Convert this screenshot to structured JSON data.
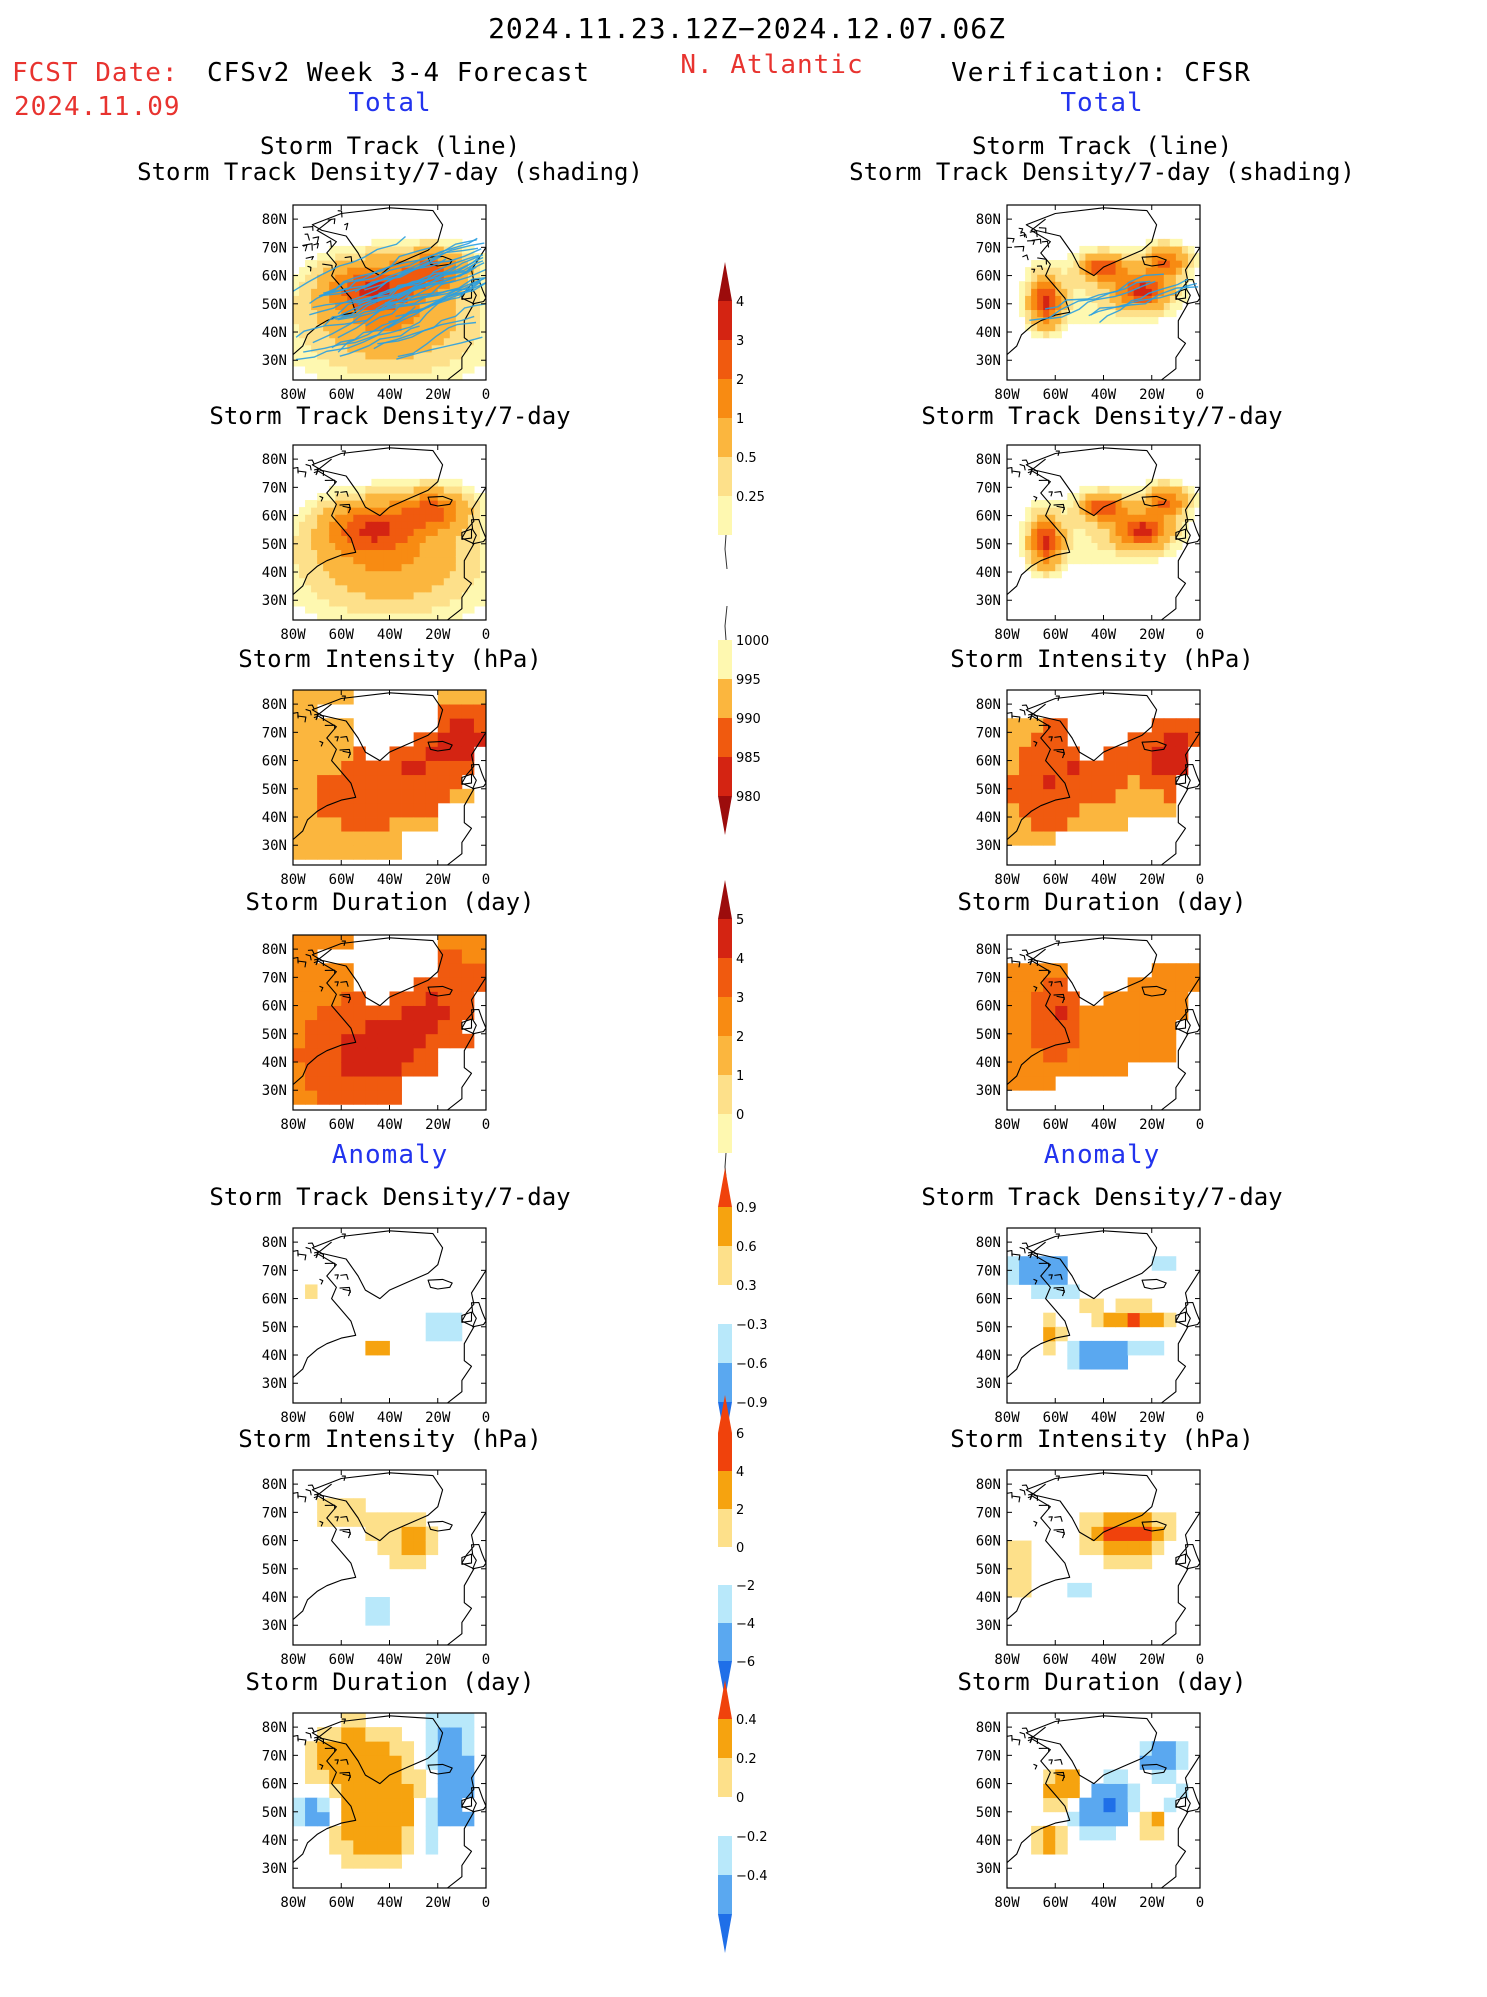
{
  "header": {
    "period": "2024.11.23.12Z−2024.12.07.06Z",
    "fcst_label": "FCST Date:",
    "fcst_date": "2024.11.09",
    "model": "CFSv2 Week 3-4 Forecast",
    "region": "N. Atlantic",
    "verification": "Verification: CFSR"
  },
  "sections": {
    "total_left": "Total",
    "total_right": "Total",
    "anomaly_left": "Anomaly",
    "anomaly_right": "Anomaly"
  },
  "panel_titles": {
    "track_line": "Storm Track (line)",
    "track_shading": "Storm Track Density/7-day (shading)",
    "density": "Storm Track Density/7-day",
    "intensity": "Storm Intensity (hPa)",
    "duration": "Storm Duration (day)"
  },
  "map_axes": {
    "lat_ticks": [
      "80N",
      "70N",
      "60N",
      "50N",
      "40N",
      "30N"
    ],
    "lon_ticks": [
      "80W",
      "60W",
      "40W",
      "20W",
      "0"
    ]
  },
  "colors": {
    "track_line": "#2a9fe0",
    "positive_scale": [
      "#fef8b0",
      "#fde08a",
      "#fbb63e",
      "#f88b12",
      "#f05a0f",
      "#d42412",
      "#9c0c0c"
    ],
    "anomaly_scale": [
      "#1f6fe8",
      "#5aa8f0",
      "#b8e8fa",
      "#ffffff",
      "#fde08a",
      "#f6a30f",
      "#f0420c"
    ]
  },
  "chart_data": [
    {
      "id": "colorbar-density",
      "type": "colorbar",
      "levels": [
        "4",
        "3",
        "2",
        "1",
        "0.5",
        "0.25"
      ]
    },
    {
      "id": "colorbar-intensity",
      "type": "colorbar",
      "levels": [
        "1000",
        "995",
        "990",
        "985",
        "980"
      ]
    },
    {
      "id": "colorbar-duration",
      "type": "colorbar",
      "levels": [
        "5",
        "4",
        "3",
        "2",
        "1",
        "0"
      ]
    },
    {
      "id": "colorbar-density-anom",
      "type": "colorbar",
      "levels": [
        "0.9",
        "0.6",
        "0.3",
        "−0.3",
        "−0.6",
        "−0.9"
      ]
    },
    {
      "id": "colorbar-intensity-anom",
      "type": "colorbar",
      "levels": [
        "6",
        "4",
        "2",
        "0",
        "−2",
        "−4",
        "−6"
      ]
    },
    {
      "id": "colorbar-duration-anom",
      "type": "colorbar",
      "levels": [
        "0.4",
        "0.2",
        "0",
        "−0.2",
        "−0.4"
      ]
    }
  ]
}
